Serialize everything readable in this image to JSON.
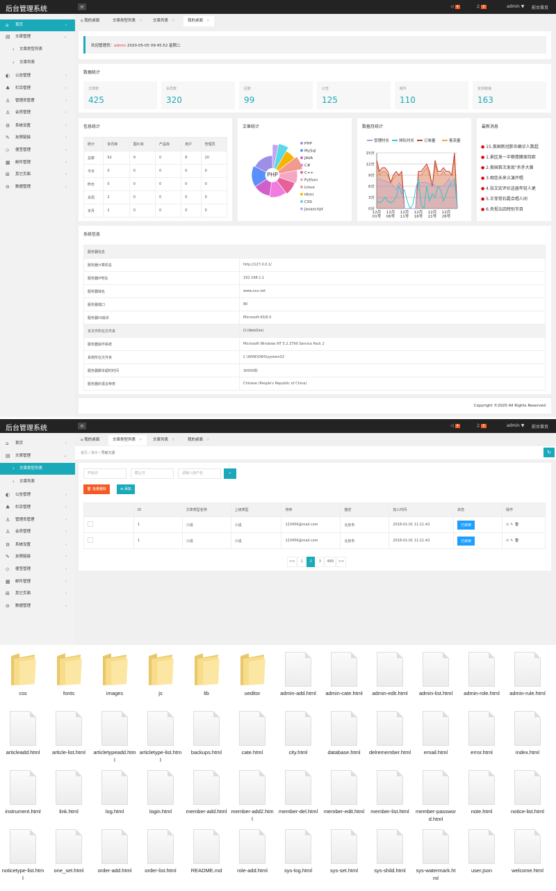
{
  "app": {
    "title": "后台管理系统",
    "admin": "admin ▼",
    "front": "前台首页",
    "badge1": "4",
    "badge2": "0"
  },
  "sidebar1": [
    {
      "label": "首页",
      "icon": "home-icon",
      "glyph": "⌂",
      "active": true
    },
    {
      "label": "文章管理",
      "icon": "document-icon",
      "glyph": "▤",
      "open": true
    },
    {
      "label": "文章类型列表",
      "sub": true
    },
    {
      "label": "文章列表",
      "sub": true
    },
    {
      "label": "公告管理",
      "icon": "speaker-icon",
      "glyph": "◐"
    },
    {
      "label": "栏目管理",
      "icon": "sitemap-icon",
      "glyph": "♣"
    },
    {
      "label": "管理员管理",
      "icon": "user-icon",
      "glyph": "♙"
    },
    {
      "label": "会员管理",
      "icon": "user-icon",
      "glyph": "♙"
    },
    {
      "label": "系统设置",
      "icon": "gear-icon",
      "glyph": "⚙"
    },
    {
      "label": "友情链接",
      "icon": "link-icon",
      "glyph": "✎"
    },
    {
      "label": "便签管理",
      "icon": "tag-icon",
      "glyph": "◇"
    },
    {
      "label": "邮件管理",
      "icon": "mail-icon",
      "glyph": "▦"
    },
    {
      "label": "其它页面",
      "icon": "grid-icon",
      "glyph": "⊞"
    },
    {
      "label": "数据管理",
      "icon": "database-icon",
      "glyph": "⊖"
    }
  ],
  "tabs": [
    "我的桌面",
    "文章类型列表",
    "文章列表",
    "我的桌面"
  ],
  "welcome": {
    "prefix": "欢迎管理员：",
    "user": "admin",
    "time": "2020-05-05  09:45:52  星期二"
  },
  "stats": {
    "title": "数据统计",
    "items": [
      {
        "label": "文章数",
        "value": "425"
      },
      {
        "label": "会员数",
        "value": "320"
      },
      {
        "label": "回复",
        "value": "99"
      },
      {
        "label": "公告",
        "value": "125"
      },
      {
        "label": "邮件",
        "value": "110"
      },
      {
        "label": "友情链接",
        "value": "163"
      }
    ]
  },
  "info": {
    "title": "信息统计",
    "headers": [
      "统计",
      "资讯库",
      "图片库",
      "产品库",
      "用户",
      "管理员"
    ],
    "rows": [
      [
        "总数",
        "92",
        "9",
        "0",
        "8",
        "20"
      ],
      [
        "今日",
        "0",
        "0",
        "0",
        "0",
        "0"
      ],
      [
        "昨日",
        "0",
        "0",
        "0",
        "0",
        "0"
      ],
      [
        "本周",
        "2",
        "0",
        "0",
        "0",
        "0"
      ],
      [
        "本月",
        "2",
        "0",
        "0",
        "0",
        "0"
      ]
    ]
  },
  "chart_data": [
    {
      "type": "pie",
      "title": "文章统计",
      "center_label": "PHP",
      "categories": [
        "PHP",
        "MySql",
        "JAVA",
        "C#",
        "C++",
        "Python",
        "Linux",
        "Html",
        "CSS",
        "Javascript"
      ],
      "values": [
        17,
        16,
        13,
        12,
        9,
        8,
        7,
        6,
        5,
        3
      ],
      "colors": [
        "#9d8fe6",
        "#5b8ff9",
        "#d25fc8",
        "#f07ce0",
        "#e8609a",
        "#f6a6c4",
        "#f09a90",
        "#f7b500",
        "#5ad8e6",
        "#c0a6f2"
      ]
    },
    {
      "type": "line",
      "title": "数据月统计",
      "ylim": [
        0,
        15
      ],
      "yticks": [
        "0分",
        "3分",
        "6分",
        "9分",
        "12分",
        "15分"
      ],
      "xticks": [
        "12月\n01号",
        "12月\n06号",
        "12月\n11号",
        "12月\n16号",
        "12月\n21号",
        "12月\n26号"
      ],
      "legend": "top",
      "series": [
        {
          "name": "受理时长",
          "color": "#a99de0",
          "values": [
            8,
            8,
            7.5,
            7.5,
            7,
            7,
            6,
            5,
            7,
            6,
            0,
            0,
            0,
            0,
            0,
            7,
            7,
            7,
            7,
            6.5,
            7,
            6,
            6,
            6,
            6,
            7,
            8,
            6,
            7,
            0
          ]
        },
        {
          "name": "排队时长",
          "color": "#2ec7c9",
          "values": [
            2,
            1.5,
            2,
            3,
            2,
            1.5,
            2,
            3,
            6,
            4,
            5,
            2,
            0,
            1,
            5,
            8,
            1,
            0,
            6,
            2,
            4,
            3,
            6,
            5,
            2,
            4,
            6,
            7,
            8,
            1
          ]
        },
        {
          "name": "订单量",
          "color": "#c0392b",
          "values": [
            13,
            10,
            11,
            11,
            10,
            7,
            9,
            10,
            9,
            10,
            0,
            0,
            0,
            0,
            0,
            10,
            10,
            11,
            12,
            10,
            6,
            13,
            10,
            10,
            11,
            10,
            10,
            9,
            15,
            0
          ]
        },
        {
          "name": "客流量",
          "color": "#f0a54a",
          "values": [
            12,
            9,
            10,
            10,
            9,
            7,
            8,
            9,
            9,
            9,
            0,
            0,
            0,
            0,
            0,
            9,
            9,
            10,
            11,
            9,
            6,
            12,
            9,
            9,
            10,
            9,
            9,
            9,
            14,
            0
          ]
        }
      ]
    }
  ],
  "news": {
    "title": "最新消息",
    "items": [
      "15.美国新冠肺炎确诊人数超",
      "1.景区发一半粮搅醋保持距",
      "2.美国首次发现\"杀手大黄",
      "3.相信未来义演开唱",
      "4.张文宏评价这届年轻人更",
      "5.王菲常石磊合唱人间",
      "6.央视五四特别节目"
    ]
  },
  "sysinfo": {
    "title": "系统信息",
    "header": "服务器信息",
    "rows": [
      [
        "服务器计算机名",
        "http://127.0.0.1/"
      ],
      [
        "服务器IP地址",
        "192.168.1.1"
      ],
      [
        "服务器域名",
        "www.xxx.net"
      ],
      [
        "服务器端口",
        "80"
      ],
      [
        "服务器IIS版本",
        "Microsoft-IIS/6.0"
      ],
      [
        "本文件所在文件夹",
        "D:\\WebSite\\"
      ],
      [
        "服务器操作系统",
        "Microsoft Windows NT 5.2.3790 Service Pack 2"
      ],
      [
        "系统所在文件夹",
        "C:\\WINDOWS\\system32"
      ],
      [
        "服务器脚本超时时间",
        "30000秒"
      ],
      [
        "服务器的语言种类",
        "Chinese (People's Republic of China)"
      ]
    ]
  },
  "footer": "Copyright ©2020 All Rights Reserved",
  "page2": {
    "tabs": [
      "我的桌面",
      "文章类型列表",
      "文章列表",
      "我的桌面"
    ],
    "breadcrumb": [
      "首页",
      "演示",
      "导航元素"
    ],
    "inputs": {
      "start": "开始日",
      "end": "截止日",
      "user": "请输入用户名"
    },
    "buttons": {
      "delete": "批量删除",
      "add": "添加"
    },
    "headers": [
      "",
      "ID",
      "文章类型名称",
      "上级类型",
      "排序",
      "描述",
      "加入时间",
      "状态",
      "操作"
    ],
    "rows": [
      [
        "1",
        "小说",
        "小说",
        "123456@mail.com",
        "北京市",
        "2018-01-01 11:11:42",
        "已启用"
      ],
      [
        "1",
        "小说",
        "小说",
        "123456@mail.com",
        "北京市",
        "2018-01-01 11:11:42",
        "已启用"
      ]
    ],
    "pages": [
      "<<",
      "1",
      "2",
      "3",
      "489",
      ">>"
    ],
    "current_page": "2"
  },
  "files": [
    {
      "name": "css",
      "type": "folder"
    },
    {
      "name": "fonts",
      "type": "folder"
    },
    {
      "name": "images",
      "type": "folder"
    },
    {
      "name": "js",
      "type": "folder"
    },
    {
      "name": "lib",
      "type": "folder"
    },
    {
      "name": "ueditor",
      "type": "folder"
    },
    {
      "name": "admin-add.html"
    },
    {
      "name": "admin-cate.html"
    },
    {
      "name": "admin-edit.html"
    },
    {
      "name": "admin-list.html"
    },
    {
      "name": "admin-role.html"
    },
    {
      "name": "admin-rule.html"
    },
    {
      "name": "articleadd.html"
    },
    {
      "name": "article-list.html"
    },
    {
      "name": "articletypeadd.html"
    },
    {
      "name": "articletype-list.html"
    },
    {
      "name": "backups.html"
    },
    {
      "name": "cate.html"
    },
    {
      "name": "city.html"
    },
    {
      "name": "database.html"
    },
    {
      "name": "delremember.html"
    },
    {
      "name": "email.html"
    },
    {
      "name": "error.html"
    },
    {
      "name": "index.html"
    },
    {
      "name": "instrument.html"
    },
    {
      "name": "link.html"
    },
    {
      "name": "log.html"
    },
    {
      "name": "login.html"
    },
    {
      "name": "member-add.html"
    },
    {
      "name": "member-add2.html"
    },
    {
      "name": "member-del.html"
    },
    {
      "name": "member-edit.html"
    },
    {
      "name": "member-list.html"
    },
    {
      "name": "member-password.html"
    },
    {
      "name": "note.html"
    },
    {
      "name": "notice-list.html"
    },
    {
      "name": "noticetype-list.html"
    },
    {
      "name": "one_set.html"
    },
    {
      "name": "order-add.html"
    },
    {
      "name": "order-list.html"
    },
    {
      "name": "README.md"
    },
    {
      "name": "role-add.html"
    },
    {
      "name": "sys-log.html"
    },
    {
      "name": "sys-set.html"
    },
    {
      "name": "sys-shild.html"
    },
    {
      "name": "sys-watermark.html"
    },
    {
      "name": "user.json"
    },
    {
      "name": "welcome.html"
    }
  ]
}
